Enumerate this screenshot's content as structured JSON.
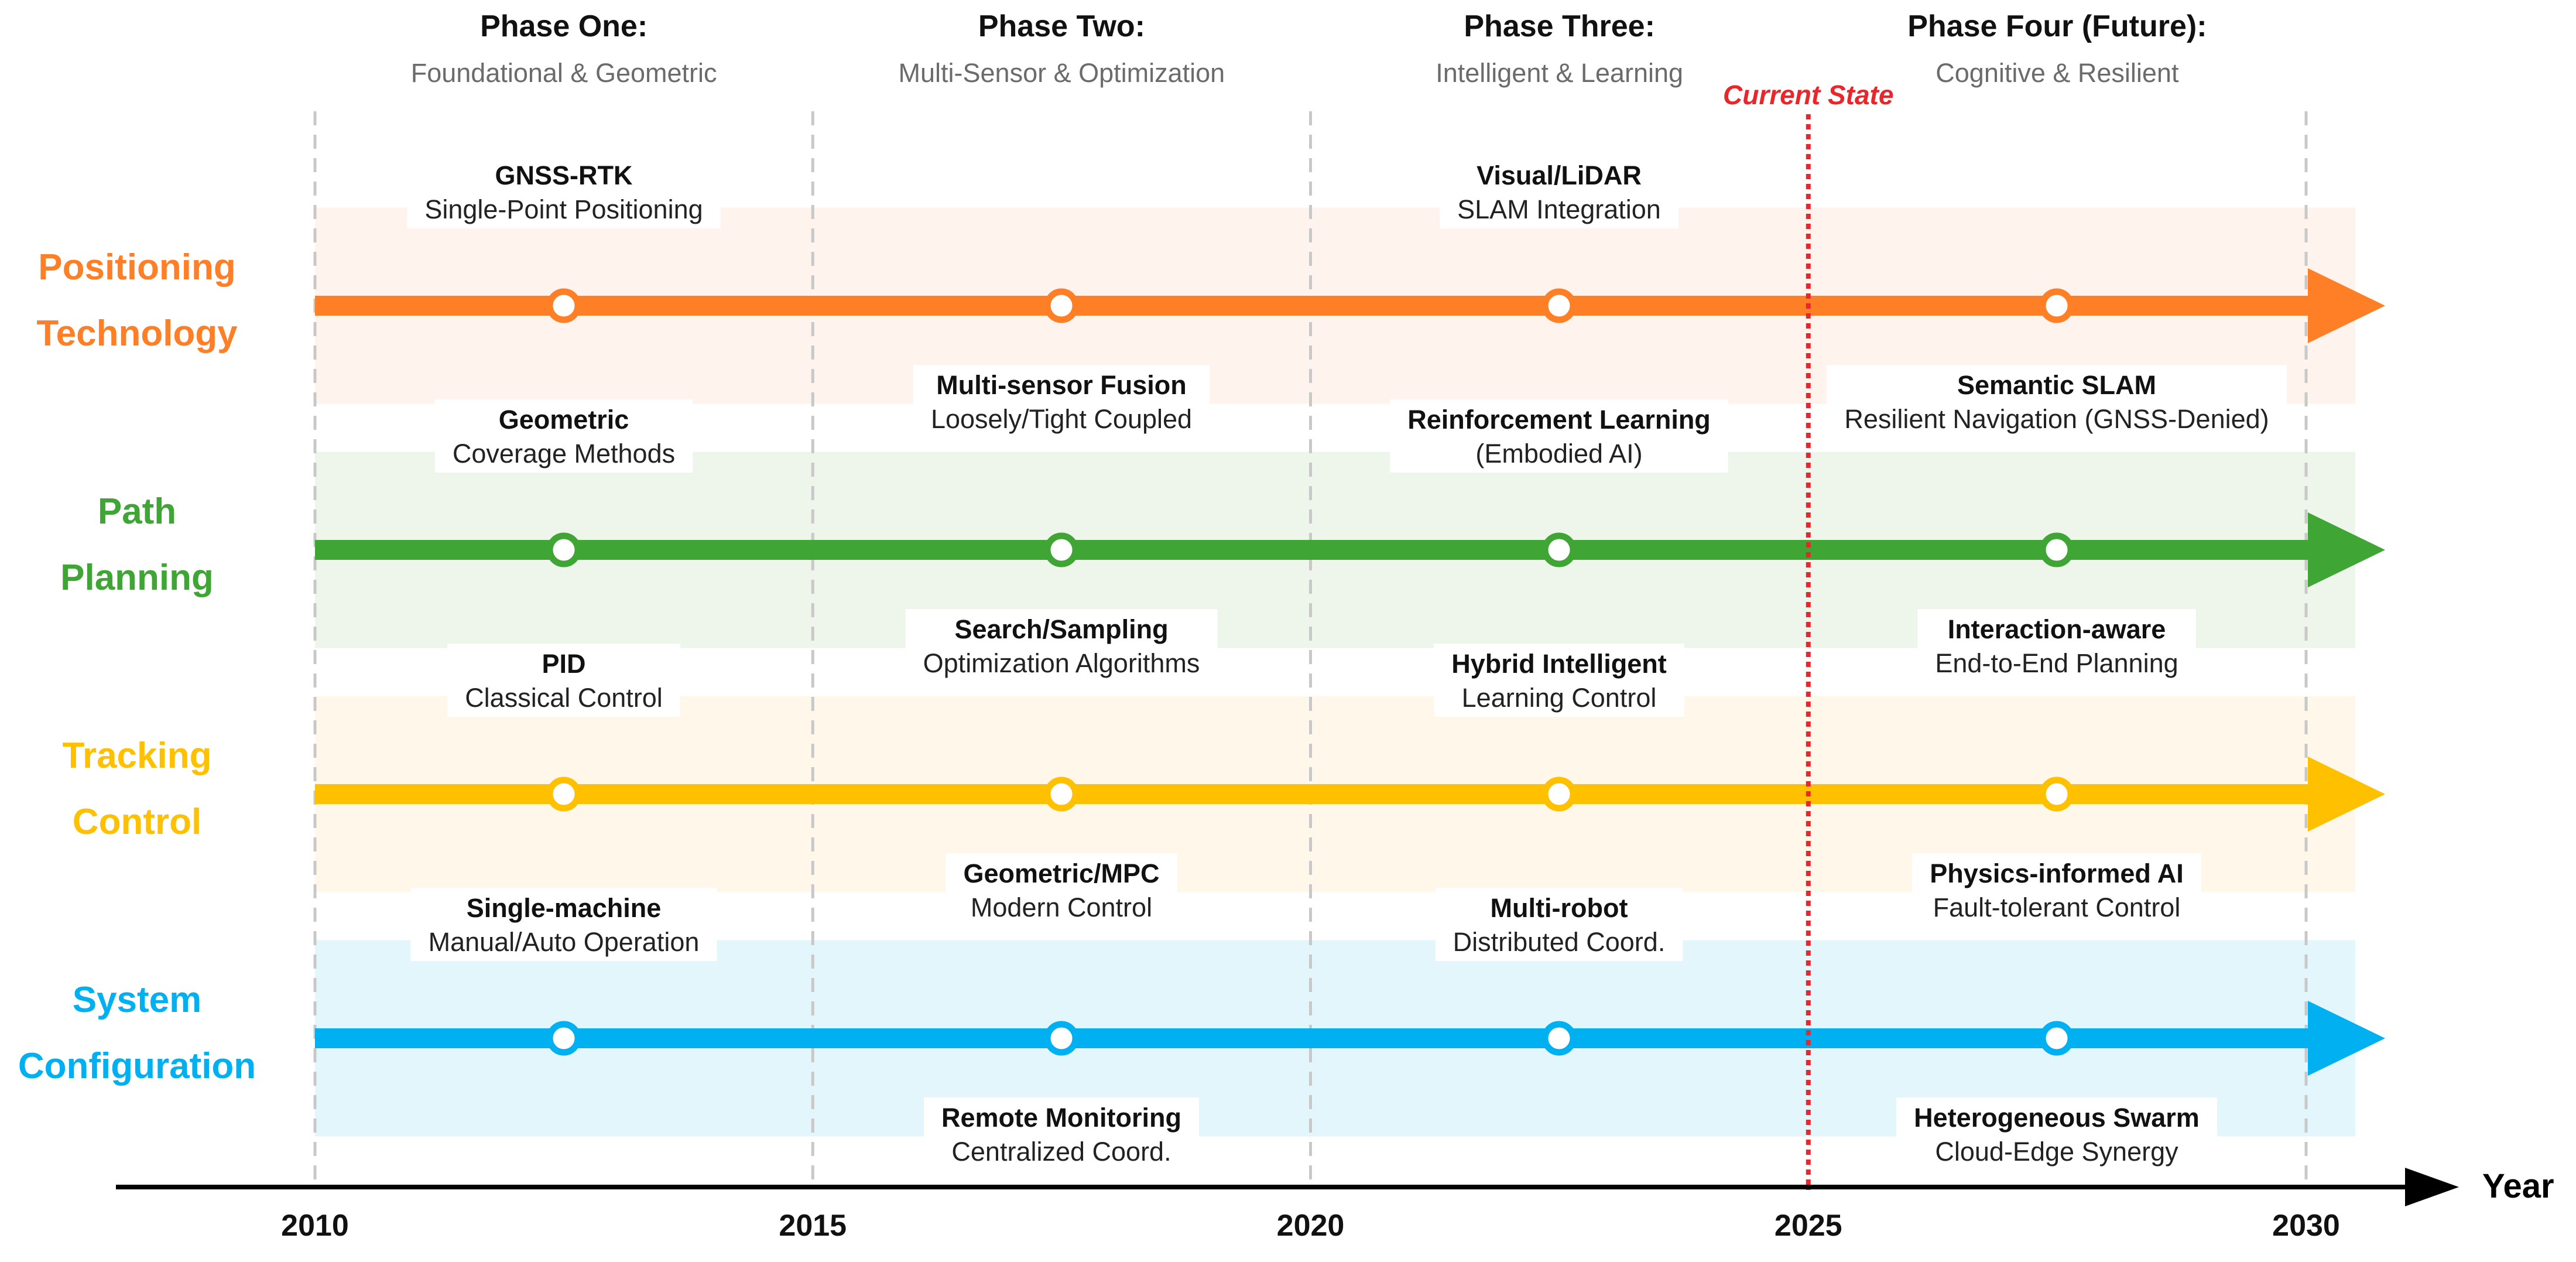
{
  "colors": {
    "positioning": "#ff7f27",
    "positioning_band": "#fff3ee",
    "path": "#3fa535",
    "path_band": "#eef6ec",
    "tracking": "#ffc000",
    "tracking_band": "#fff8ea",
    "system": "#00b0f0",
    "system_band": "#e3f6fc",
    "current_state": "#e8262b",
    "axis": "#000000",
    "phase_title": "#111111",
    "phase_subtitle": "#6b6b6b"
  },
  "phases": [
    {
      "title": "Phase One:",
      "subtitle": "Foundational & Geometric"
    },
    {
      "title": "Phase Two:",
      "subtitle": "Multi-Sensor & Optimization"
    },
    {
      "title": "Phase Three:",
      "subtitle": "Intelligent & Learning"
    },
    {
      "title": "Phase Four (Future):",
      "subtitle": "Cognitive & Resilient"
    }
  ],
  "current_state_label": "Current State",
  "current_state_year": 2025,
  "axis": {
    "label": "Year",
    "ticks": [
      "2010",
      "2015",
      "2020",
      "2025",
      "2030"
    ]
  },
  "tracks": [
    {
      "id": "positioning",
      "name_lines": [
        "Positioning",
        "Technology"
      ],
      "milestones": [
        {
          "title": "GNSS-RTK",
          "subtitle": "Single-Point Positioning",
          "place": "above"
        },
        {
          "title": "Multi-sensor Fusion",
          "subtitle": "Loosely/Tight Coupled",
          "place": "below"
        },
        {
          "title": "Visual/LiDAR",
          "subtitle": "SLAM Integration",
          "place": "above"
        },
        {
          "title": "Semantic SLAM",
          "subtitle": "Resilient Navigation (GNSS-Denied)",
          "place": "below"
        }
      ]
    },
    {
      "id": "path",
      "name_lines": [
        "Path",
        "Planning"
      ],
      "milestones": [
        {
          "title": "Geometric",
          "subtitle": "Coverage Methods",
          "place": "above"
        },
        {
          "title": "Search/Sampling",
          "subtitle": "Optimization Algorithms",
          "place": "below"
        },
        {
          "title": "Reinforcement Learning",
          "subtitle": "(Embodied AI)",
          "place": "above"
        },
        {
          "title": "Interaction-aware",
          "subtitle": "End-to-End Planning",
          "place": "below"
        }
      ]
    },
    {
      "id": "tracking",
      "name_lines": [
        "Tracking",
        "Control"
      ],
      "milestones": [
        {
          "title": "PID",
          "subtitle": "Classical Control",
          "place": "above"
        },
        {
          "title": "Geometric/MPC",
          "subtitle": "Modern Control",
          "place": "below"
        },
        {
          "title": "Hybrid Intelligent",
          "subtitle": "Learning Control",
          "place": "above"
        },
        {
          "title": "Physics-informed AI",
          "subtitle": "Fault-tolerant Control",
          "place": "below"
        }
      ]
    },
    {
      "id": "system",
      "name_lines": [
        "System",
        "Configuration"
      ],
      "milestones": [
        {
          "title": "Single-machine",
          "subtitle": "Manual/Auto Operation",
          "place": "above"
        },
        {
          "title": "Remote Monitoring",
          "subtitle": "Centralized Coord.",
          "place": "below"
        },
        {
          "title": "Multi-robot",
          "subtitle": "Distributed Coord.",
          "place": "above"
        },
        {
          "title": "Heterogeneous Swarm",
          "subtitle": "Cloud-Edge Synergy",
          "place": "below"
        }
      ]
    }
  ]
}
